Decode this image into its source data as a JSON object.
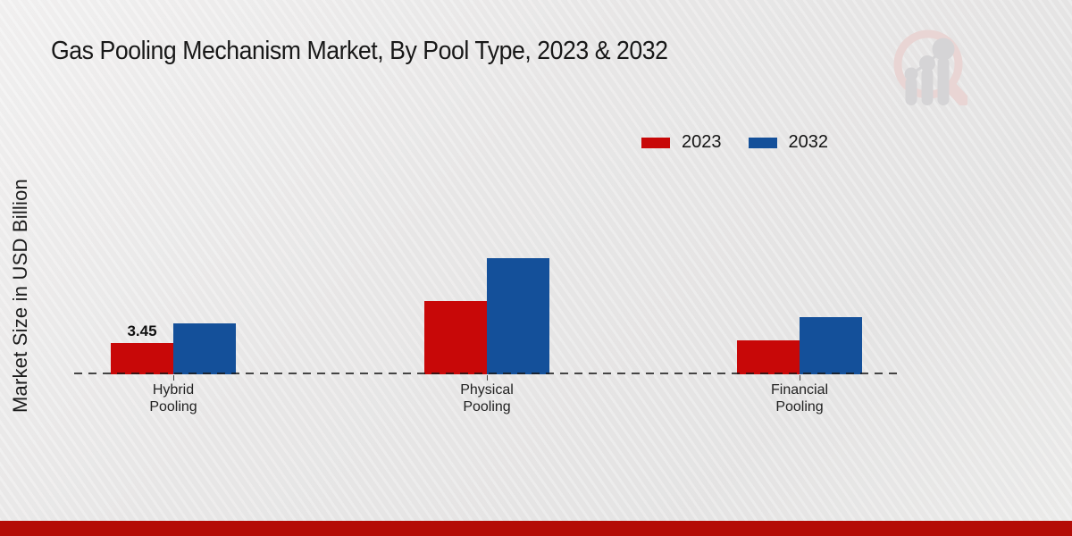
{
  "title": "Gas Pooling Mechanism Market, By Pool Type, 2023 & 2032",
  "y_axis_label": "Market Size in USD Billion",
  "logo_name": "market-research-future-watermark",
  "colors": {
    "series_2023": "#c80808",
    "series_2032": "#14509a",
    "footer_bar": "#b40c06",
    "baseline": "#2e2e2e"
  },
  "legend": [
    {
      "label": "2023",
      "color": "#c80808"
    },
    {
      "label": "2032",
      "color": "#14509a"
    }
  ],
  "chart_data": {
    "type": "bar",
    "title": "Gas Pooling Mechanism Market, By Pool Type, 2023 & 2032",
    "xlabel": "",
    "ylabel": "Market Size in USD Billion",
    "categories": [
      "Hybrid Pooling",
      "Physical Pooling",
      "Financial Pooling"
    ],
    "series": [
      {
        "name": "2023",
        "color": "#c80808",
        "values": [
          3.45,
          8.1,
          3.75
        ]
      },
      {
        "name": "2032",
        "color": "#14509a",
        "values": [
          5.6,
          12.8,
          6.3
        ]
      }
    ],
    "data_labels": [
      {
        "series": "2023",
        "category_index": 0,
        "text": "3.45"
      }
    ],
    "baseline_style": "dashed",
    "grid": false,
    "legend_position": "top-right",
    "y_axis_ticks_visible": false
  }
}
